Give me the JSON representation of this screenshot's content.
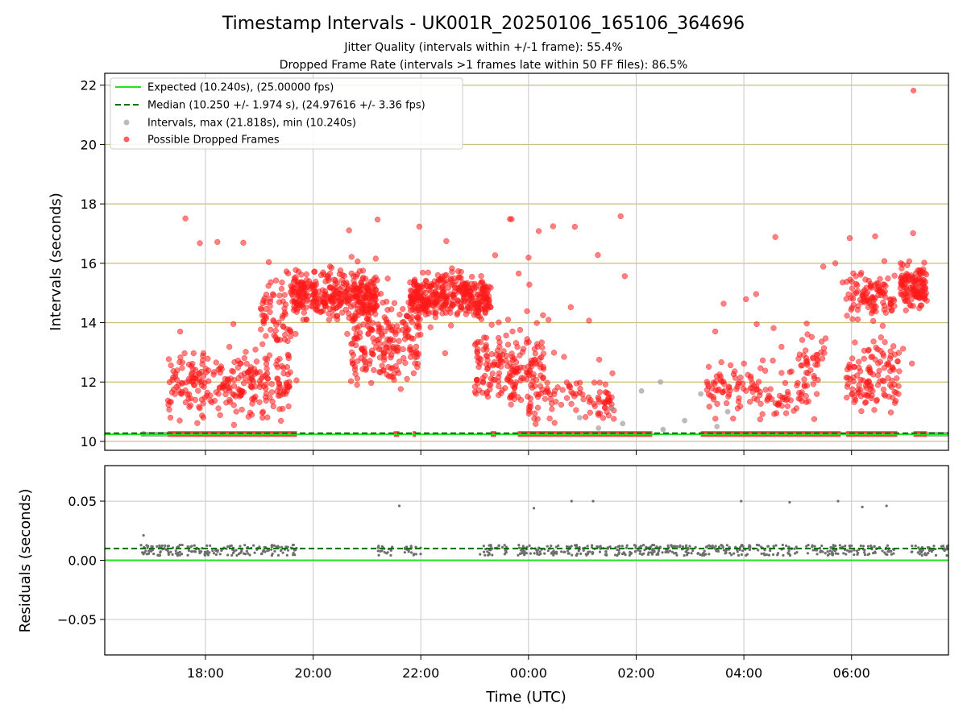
{
  "chart_data": {
    "title": "Timestamp Intervals - UK001R_20250106_165106_364696",
    "subtitles": [
      "Jitter Quality (intervals within +/-1 frame): 55.4%",
      "Dropped Frame Rate (intervals >1 frames late within 50 FF files): 86.5%"
    ],
    "xlabel": "Time (UTC)",
    "x_ticks": [
      "18:00",
      "20:00",
      "22:00",
      "00:00",
      "02:00",
      "04:00",
      "06:00"
    ],
    "x_tick_hours": [
      18,
      20,
      22,
      24,
      26,
      28,
      30
    ],
    "x_range_hours": [
      16.13,
      31.8
    ],
    "panels": [
      {
        "type": "scatter",
        "ylabel": "Intervals (seconds)",
        "ylim": [
          9.7,
          22.4
        ],
        "y_ticks": [
          10,
          12,
          14,
          16,
          18,
          20,
          22
        ],
        "grid": "y-khaki, x-gray",
        "legend": {
          "position": "top-left",
          "entries": [
            {
              "label": "Expected (10.240s), (25.00000 fps)",
              "style": "solid",
              "color": "#22e022"
            },
            {
              "label": "Median (10.250 +/- 1.974 s), (24.97616 +/- 3.36 fps)",
              "style": "dashed",
              "color": "#067006"
            },
            {
              "label": "Intervals, max (21.818s), min (10.240s)",
              "style": "dot",
              "color": "#9e9e9e"
            },
            {
              "label": "Possible Dropped Frames",
              "style": "dot",
              "color": "#ff1a1a"
            }
          ]
        },
        "expected_line": 10.24,
        "median_line": 10.25,
        "max_point": {
          "x_hour": 31.15,
          "y": 21.818
        },
        "gray_outliers": [
          {
            "x_hour": 16.85,
            "y": 10.26
          },
          {
            "x_hour": 24.95,
            "y": 10.8
          },
          {
            "x_hour": 25.3,
            "y": 10.45
          },
          {
            "x_hour": 25.55,
            "y": 11.1
          },
          {
            "x_hour": 25.75,
            "y": 10.6
          },
          {
            "x_hour": 26.1,
            "y": 11.7
          },
          {
            "x_hour": 26.5,
            "y": 10.4
          },
          {
            "x_hour": 26.45,
            "y": 12.0
          },
          {
            "x_hour": 26.9,
            "y": 10.7
          },
          {
            "x_hour": 27.2,
            "y": 11.6
          },
          {
            "x_hour": 27.5,
            "y": 10.5
          },
          {
            "x_hour": 27.7,
            "y": 11.0
          }
        ],
        "dense_clusters": [
          {
            "x_start": 17.3,
            "x_end": 19.6,
            "y_min": 10.3,
            "y_max": 13.5,
            "count": 260
          },
          {
            "x_start": 19.0,
            "x_end": 19.7,
            "y_min": 12.5,
            "y_max": 16.5,
            "count": 80
          },
          {
            "x_start": 19.6,
            "x_end": 21.2,
            "y_min": 13.8,
            "y_max": 16.0,
            "count": 320
          },
          {
            "x_start": 20.7,
            "x_end": 22.0,
            "y_min": 11.0,
            "y_max": 15.8,
            "count": 220
          },
          {
            "x_start": 21.8,
            "x_end": 23.3,
            "y_min": 13.8,
            "y_max": 16.0,
            "count": 340
          },
          {
            "x_start": 23.0,
            "x_end": 24.3,
            "y_min": 10.5,
            "y_max": 14.5,
            "count": 180
          },
          {
            "x_start": 24.0,
            "x_end": 25.6,
            "y_min": 10.3,
            "y_max": 12.5,
            "count": 90
          },
          {
            "x_start": 27.3,
            "x_end": 29.0,
            "y_min": 10.4,
            "y_max": 13.0,
            "count": 110
          },
          {
            "x_start": 29.0,
            "x_end": 29.5,
            "y_min": 10.5,
            "y_max": 14.5,
            "count": 50
          },
          {
            "x_start": 29.9,
            "x_end": 30.9,
            "y_min": 10.5,
            "y_max": 14.0,
            "count": 120
          },
          {
            "x_start": 29.9,
            "x_end": 30.8,
            "y_min": 13.8,
            "y_max": 16.0,
            "count": 100
          },
          {
            "x_start": 30.9,
            "x_end": 31.4,
            "y_min": 14.2,
            "y_max": 16.2,
            "count": 120
          }
        ],
        "baseline_segments": [
          {
            "x_start": 17.3,
            "x_end": 19.7
          },
          {
            "x_start": 21.5,
            "x_end": 21.6
          },
          {
            "x_start": 21.85,
            "x_end": 21.9
          },
          {
            "x_start": 23.3,
            "x_end": 23.4
          },
          {
            "x_start": 23.8,
            "x_end": 25.7
          },
          {
            "x_start": 25.7,
            "x_end": 26.3
          },
          {
            "x_start": 27.2,
            "x_end": 29.8
          },
          {
            "x_start": 29.9,
            "x_end": 30.85
          },
          {
            "x_start": 31.15,
            "x_end": 31.4
          }
        ]
      },
      {
        "type": "scatter",
        "ylabel": "Residuals (seconds)",
        "ylim": [
          -0.08,
          0.08
        ],
        "y_ticks": [
          -0.05,
          0.0,
          0.05
        ],
        "y_tick_labels": [
          "−0.05",
          "0.00",
          "0.05"
        ],
        "expected_line": 0.0,
        "median_line": 0.01,
        "band_segments": [
          {
            "x_start": 16.8,
            "x_end": 19.7
          },
          {
            "x_start": 21.2,
            "x_end": 21.5
          },
          {
            "x_start": 21.7,
            "x_end": 22.0
          },
          {
            "x_start": 23.1,
            "x_end": 23.6
          },
          {
            "x_start": 23.8,
            "x_end": 29.0
          },
          {
            "x_start": 29.15,
            "x_end": 29.95
          },
          {
            "x_start": 29.95,
            "x_end": 30.8
          },
          {
            "x_start": 31.1,
            "x_end": 31.8
          }
        ],
        "outliers": [
          {
            "x_hour": 16.85,
            "y": 0.021
          },
          {
            "x_hour": 21.6,
            "y": 0.046
          },
          {
            "x_hour": 24.1,
            "y": 0.044
          },
          {
            "x_hour": 24.8,
            "y": 0.05
          },
          {
            "x_hour": 25.2,
            "y": 0.05
          },
          {
            "x_hour": 27.95,
            "y": 0.05
          },
          {
            "x_hour": 28.85,
            "y": 0.049
          },
          {
            "x_hour": 29.75,
            "y": 0.05
          },
          {
            "x_hour": 30.2,
            "y": 0.045
          },
          {
            "x_hour": 30.65,
            "y": 0.046
          }
        ]
      }
    ]
  }
}
